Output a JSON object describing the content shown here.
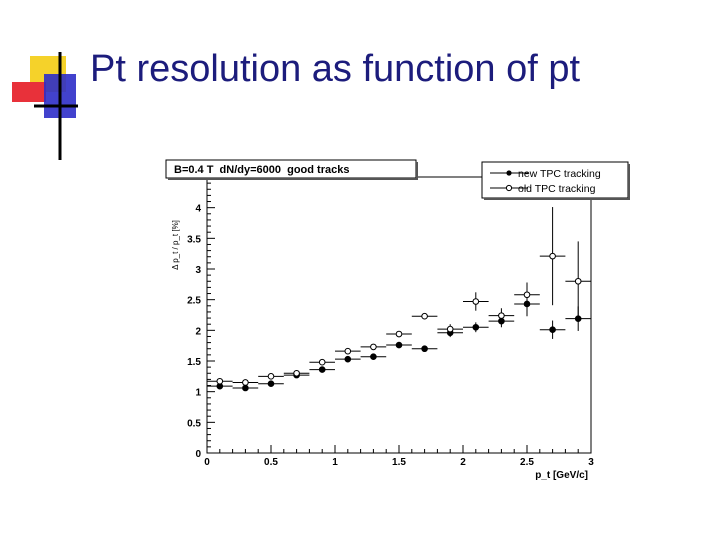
{
  "slide": {
    "title": "Pt resolution as function of pt"
  },
  "colors": {
    "title": "#1c1c7c",
    "bullet_yellow": "#f5d22a",
    "bullet_red": "#e8313a",
    "bullet_blue": "#2d2dc8"
  },
  "chart_data": {
    "type": "scatter",
    "title": "B=0.4 T  dN/dy=6000  good tracks",
    "xlabel": "p_t [GeV/c]",
    "ylabel": "Δ p_t / p_t [%]",
    "xlim": [
      0,
      3
    ],
    "ylim": [
      0,
      4.5
    ],
    "x_ticks": [
      "0",
      "0.5",
      "1",
      "1.5",
      "2",
      "2.5",
      "3"
    ],
    "y_ticks": [
      "0",
      "0.5",
      "1",
      "1.5",
      "2",
      "2.5",
      "3",
      "3.5",
      "4"
    ],
    "legend_position": "top-right",
    "grid": false,
    "series": [
      {
        "name": "new TPC tracking",
        "marker": "filled-circle",
        "x": [
          0.1,
          0.3,
          0.5,
          0.7,
          0.9,
          1.1,
          1.3,
          1.5,
          1.7,
          1.9,
          2.1,
          2.3,
          2.5,
          2.7,
          2.9
        ],
        "y": [
          1.09,
          1.06,
          1.13,
          1.27,
          1.36,
          1.53,
          1.57,
          1.76,
          1.7,
          1.96,
          2.05,
          2.15,
          2.43,
          2.01,
          2.19
        ],
        "xerr": [
          0.1,
          0.1,
          0.1,
          0.1,
          0.1,
          0.1,
          0.1,
          0.1,
          0.1,
          0.1,
          0.1,
          0.1,
          0.1,
          0.1,
          0.1
        ],
        "yerr": [
          0.02,
          0.02,
          0.02,
          0.03,
          0.03,
          0.03,
          0.04,
          0.04,
          0.05,
          0.07,
          0.08,
          0.1,
          0.2,
          0.15,
          0.2
        ]
      },
      {
        "name": "old TPC tracking",
        "marker": "open-circle",
        "x": [
          0.1,
          0.3,
          0.5,
          0.7,
          0.9,
          1.1,
          1.3,
          1.5,
          1.7,
          1.9,
          2.1,
          2.3,
          2.5,
          2.7,
          2.9
        ],
        "y": [
          1.17,
          1.15,
          1.25,
          1.3,
          1.48,
          1.66,
          1.73,
          1.94,
          2.23,
          2.02,
          2.47,
          2.24,
          2.58,
          3.21,
          2.8
        ],
        "xerr": [
          0.1,
          0.1,
          0.1,
          0.1,
          0.1,
          0.1,
          0.1,
          0.1,
          0.1,
          0.1,
          0.1,
          0.1,
          0.1,
          0.1,
          0.1
        ],
        "yerr": [
          0.02,
          0.02,
          0.02,
          0.03,
          0.03,
          0.03,
          0.04,
          0.05,
          0.05,
          0.08,
          0.15,
          0.12,
          0.2,
          0.8,
          0.65
        ]
      }
    ]
  }
}
